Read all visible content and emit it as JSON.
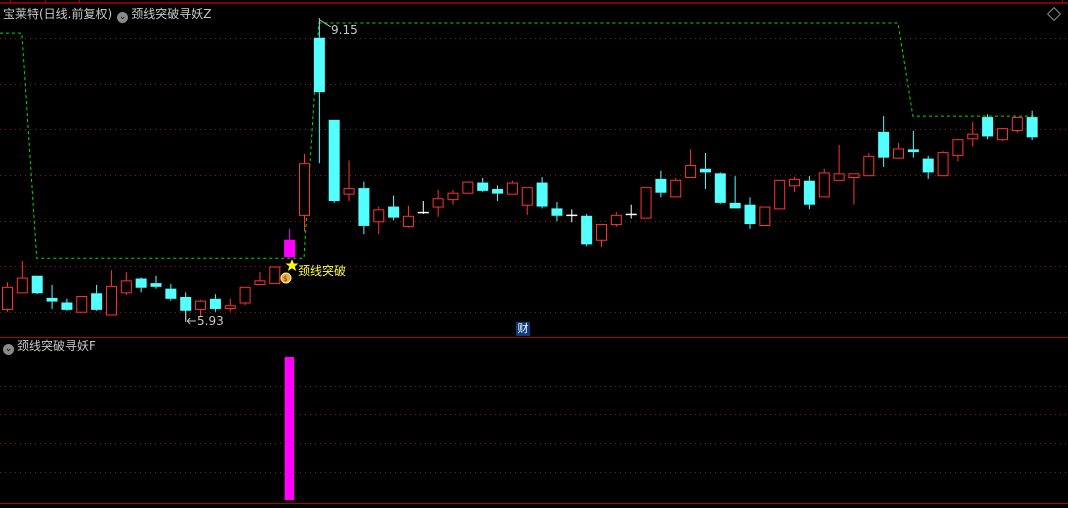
{
  "header": {
    "stock_title": "宝莱特(日线.前复权)",
    "indicator_main": "颈线突破寻妖Z",
    "indicator_sub": "颈线突破寻妖F",
    "finance_badge": "财"
  },
  "colors": {
    "up": "#ff3232",
    "down": "#54ffff",
    "doji": "#ffffff",
    "signal_candle": "#ff00ff",
    "neckline": "#00e000",
    "grid": "#8b1a1a",
    "signal_text": "#ffff40"
  },
  "chart_data": [
    {
      "type": "candlestick",
      "title": "宝莱特(日线.前复权)",
      "ylim": [
        5.93,
        9.15
      ],
      "grid": true,
      "annotations": {
        "high_label": "9.15",
        "low_label": "5.93",
        "signal_label": "颈线突破"
      },
      "signal_index": 19,
      "ohlc": [
        [
          6.05,
          6.34,
          6.02,
          6.29
        ],
        [
          6.23,
          6.57,
          6.22,
          6.39
        ],
        [
          6.41,
          6.41,
          6.21,
          6.22
        ],
        [
          6.17,
          6.31,
          6.05,
          6.13
        ],
        [
          6.12,
          6.16,
          6.03,
          6.04
        ],
        [
          6.02,
          6.19,
          6.02,
          6.19
        ],
        [
          6.22,
          6.31,
          6.03,
          6.04
        ],
        [
          5.99,
          6.47,
          5.99,
          6.3
        ],
        [
          6.23,
          6.45,
          6.2,
          6.36
        ],
        [
          6.38,
          6.39,
          6.23,
          6.28
        ],
        [
          6.33,
          6.41,
          6.27,
          6.29
        ],
        [
          6.27,
          6.32,
          6.14,
          6.16
        ],
        [
          6.18,
          6.23,
          5.93,
          6.03
        ],
        [
          6.05,
          6.15,
          5.97,
          6.14
        ],
        [
          6.16,
          6.21,
          6.02,
          6.05
        ],
        [
          6.06,
          6.16,
          6.02,
          6.09
        ],
        [
          6.12,
          6.29,
          6.09,
          6.29
        ],
        [
          6.32,
          6.45,
          6.32,
          6.36
        ],
        [
          6.33,
          6.51,
          6.33,
          6.51
        ],
        [
          6.61,
          6.92,
          6.61,
          6.8
        ],
        [
          7.07,
          7.73,
          6.89,
          7.63
        ],
        [
          8.99,
          9.15,
          7.63,
          8.4
        ],
        [
          8.1,
          8.1,
          7.2,
          7.22
        ],
        [
          7.3,
          7.66,
          7.22,
          7.36
        ],
        [
          7.36,
          7.43,
          6.86,
          6.95
        ],
        [
          7.0,
          7.16,
          6.86,
          7.13
        ],
        [
          7.16,
          7.28,
          7.01,
          7.04
        ],
        [
          6.95,
          7.17,
          6.93,
          7.06
        ],
        [
          7.1,
          7.22,
          7.08,
          7.1
        ],
        [
          7.16,
          7.34,
          7.05,
          7.25
        ],
        [
          7.24,
          7.34,
          7.18,
          7.31
        ],
        [
          7.31,
          7.43,
          7.31,
          7.43
        ],
        [
          7.42,
          7.47,
          7.32,
          7.33
        ],
        [
          7.35,
          7.39,
          7.22,
          7.3
        ],
        [
          7.3,
          7.44,
          7.3,
          7.42
        ],
        [
          7.18,
          7.37,
          7.07,
          7.37
        ],
        [
          7.42,
          7.48,
          7.14,
          7.16
        ],
        [
          7.14,
          7.21,
          7.0,
          7.06
        ],
        [
          7.07,
          7.13,
          6.99,
          7.07
        ],
        [
          7.06,
          7.08,
          6.73,
          6.75
        ],
        [
          6.8,
          6.97,
          6.72,
          6.97
        ],
        [
          6.97,
          7.1,
          6.94,
          7.07
        ],
        [
          7.08,
          7.18,
          7.03,
          7.08
        ],
        [
          7.04,
          7.37,
          7.04,
          7.37
        ],
        [
          7.46,
          7.55,
          7.26,
          7.31
        ],
        [
          7.27,
          7.47,
          7.27,
          7.45
        ],
        [
          7.48,
          7.78,
          7.48,
          7.61
        ],
        [
          7.57,
          7.74,
          7.35,
          7.53
        ],
        [
          7.52,
          7.53,
          7.19,
          7.2
        ],
        [
          7.2,
          7.49,
          7.14,
          7.14
        ],
        [
          7.18,
          7.26,
          6.92,
          6.97
        ],
        [
          6.96,
          7.16,
          6.96,
          7.16
        ],
        [
          7.14,
          7.45,
          7.14,
          7.45
        ],
        [
          7.39,
          7.48,
          7.32,
          7.46
        ],
        [
          7.44,
          7.49,
          7.13,
          7.18
        ],
        [
          7.27,
          7.57,
          7.27,
          7.53
        ],
        [
          7.45,
          7.83,
          7.45,
          7.52
        ],
        [
          7.48,
          7.52,
          7.18,
          7.52
        ],
        [
          7.5,
          7.74,
          7.5,
          7.71
        ],
        [
          7.97,
          8.14,
          7.59,
          7.69
        ],
        [
          7.69,
          7.85,
          7.69,
          7.79
        ],
        [
          7.78,
          7.98,
          7.69,
          7.75
        ],
        [
          7.68,
          7.71,
          7.46,
          7.53
        ],
        [
          7.5,
          7.76,
          7.5,
          7.75
        ],
        [
          7.72,
          7.89,
          7.65,
          7.89
        ],
        [
          7.9,
          8.08,
          7.81,
          7.95
        ],
        [
          8.13,
          8.16,
          7.89,
          7.92
        ],
        [
          7.89,
          8.01,
          7.87,
          8.01
        ],
        [
          7.99,
          8.13,
          7.96,
          8.13
        ],
        [
          8.13,
          8.2,
          7.88,
          7.91
        ]
      ],
      "neckline": [
        9.04,
        9.04,
        6.6,
        6.6,
        6.6,
        6.6,
        6.6,
        6.6,
        6.6,
        6.6,
        6.6,
        6.6,
        6.6,
        6.6,
        6.6,
        6.6,
        6.6,
        6.6,
        6.6,
        6.6,
        6.6,
        9.15,
        9.15,
        9.15,
        9.15,
        9.15,
        9.15,
        9.15,
        9.15,
        9.15,
        9.15,
        9.15,
        9.15,
        9.15,
        9.15,
        9.15,
        9.15,
        9.15,
        9.15,
        9.15,
        9.15,
        9.15,
        9.15,
        9.15,
        9.15,
        9.15,
        9.15,
        9.15,
        9.15,
        9.15,
        9.15,
        9.15,
        9.15,
        9.15,
        9.15,
        9.15,
        9.15,
        9.15,
        9.15,
        9.15,
        9.15,
        8.14,
        8.14,
        8.14,
        8.14,
        8.14,
        8.14,
        8.14,
        8.14,
        8.14
      ]
    },
    {
      "type": "bar",
      "title": "颈线突破寻妖F",
      "values_nonzero": {
        "index": 19,
        "value": 1
      },
      "ylim": [
        0,
        1
      ],
      "grid": true
    }
  ]
}
